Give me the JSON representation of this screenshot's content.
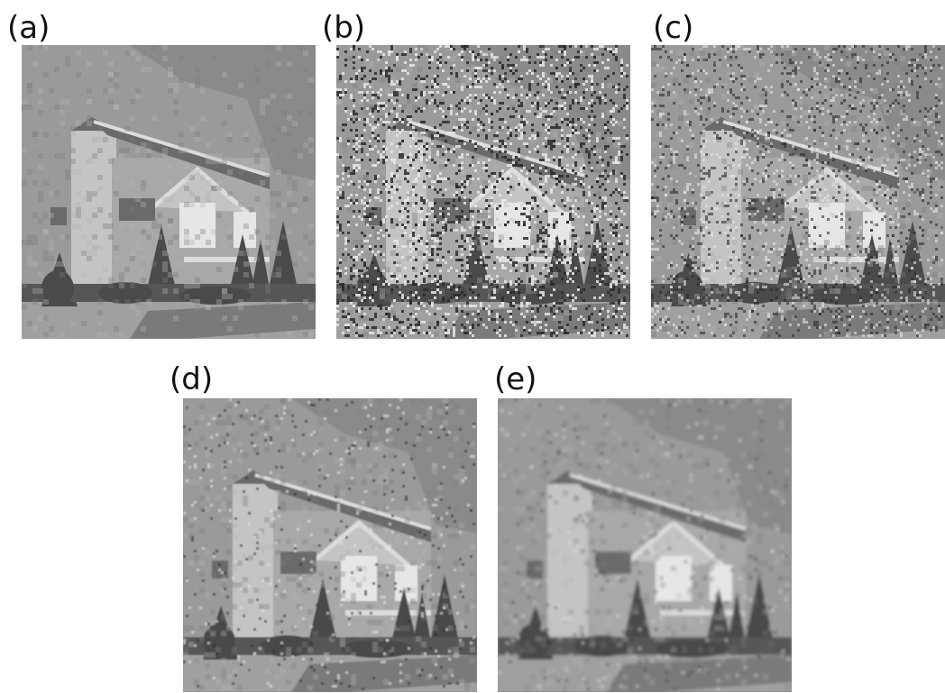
{
  "figure": {
    "panels": [
      {
        "id": "a",
        "label": "(a)",
        "description_key": "original-quantized",
        "noise": "none",
        "smooth": 0
      },
      {
        "id": "b",
        "label": "(b)",
        "description_key": "noisy-strong",
        "noise": "strong",
        "smooth": 0
      },
      {
        "id": "c",
        "label": "(c)",
        "description_key": "noisy-medium",
        "noise": "medium",
        "smooth": 0
      },
      {
        "id": "d",
        "label": "(d)",
        "description_key": "restored-1",
        "noise": "light",
        "smooth": 1
      },
      {
        "id": "e",
        "label": "(e)",
        "description_key": "restored-2",
        "noise": "very-light",
        "smooth": 2
      }
    ]
  },
  "palette": {
    "sky": "#9a9a9a",
    "sky_dark": "#8a8a8a",
    "roof": "#6a6a6a",
    "wall_light": "#c4c4c4",
    "wall_mid": "#a8a8a8",
    "trim": "#dcdcdc",
    "window": "#e6e6e6",
    "tree": "#4a4a4a",
    "bush": "#565656",
    "ground": "#a0a0a0",
    "ground_dark": "#7a7a7a"
  }
}
